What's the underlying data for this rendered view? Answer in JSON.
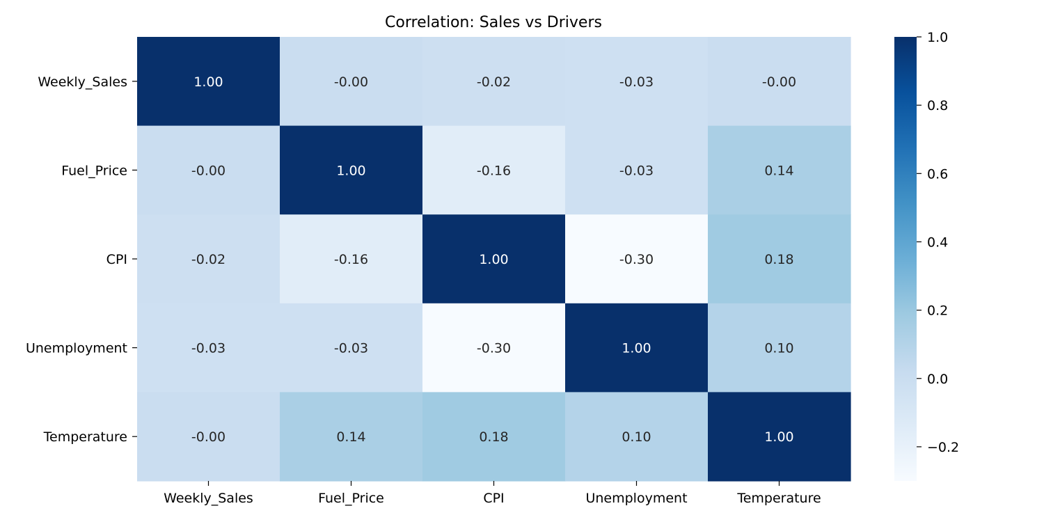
{
  "chart_data": {
    "type": "heatmap",
    "title": "Correlation: Sales vs Drivers",
    "xlabel": "",
    "ylabel": "",
    "x_categories": [
      "Weekly_Sales",
      "Fuel_Price",
      "CPI",
      "Unemployment",
      "Temperature"
    ],
    "y_categories": [
      "Weekly_Sales",
      "Fuel_Price",
      "CPI",
      "Unemployment",
      "Temperature"
    ],
    "values": [
      [
        1.0,
        -0.0,
        -0.02,
        -0.03,
        -0.0
      ],
      [
        -0.0,
        1.0,
        -0.16,
        -0.03,
        0.14
      ],
      [
        -0.02,
        -0.16,
        1.0,
        -0.3,
        0.18
      ],
      [
        -0.03,
        -0.03,
        -0.3,
        1.0,
        0.1
      ],
      [
        -0.0,
        0.14,
        0.18,
        0.1,
        1.0
      ]
    ],
    "cell_labels": [
      [
        "1.00",
        "-0.00",
        "-0.02",
        "-0.03",
        "-0.00"
      ],
      [
        "-0.00",
        "1.00",
        "-0.16",
        "-0.03",
        "0.14"
      ],
      [
        "-0.02",
        "-0.16",
        "1.00",
        "-0.30",
        "0.18"
      ],
      [
        "-0.03",
        "-0.03",
        "-0.30",
        "1.00",
        "0.10"
      ],
      [
        "-0.00",
        "0.14",
        "0.18",
        "0.10",
        "1.00"
      ]
    ],
    "colormap": "Blues",
    "colormap_stops": [
      "#f7fbff",
      "#deebf7",
      "#c6dbef",
      "#9ecae1",
      "#6baed6",
      "#4292c6",
      "#2171b5",
      "#08519c",
      "#08306b"
    ],
    "vmin": -0.3,
    "vmax": 1.0,
    "colorbar_ticks": [
      1.0,
      0.8,
      0.6,
      0.4,
      0.2,
      0.0,
      -0.2
    ],
    "colorbar_tick_labels": [
      "1.0",
      "0.8",
      "0.6",
      "0.4",
      "0.2",
      "0.0",
      "−0.2"
    ],
    "annotation_colors": {
      "light": "#ffffff",
      "dark": "#262626"
    },
    "grid": false,
    "colorbar_position": "right"
  }
}
